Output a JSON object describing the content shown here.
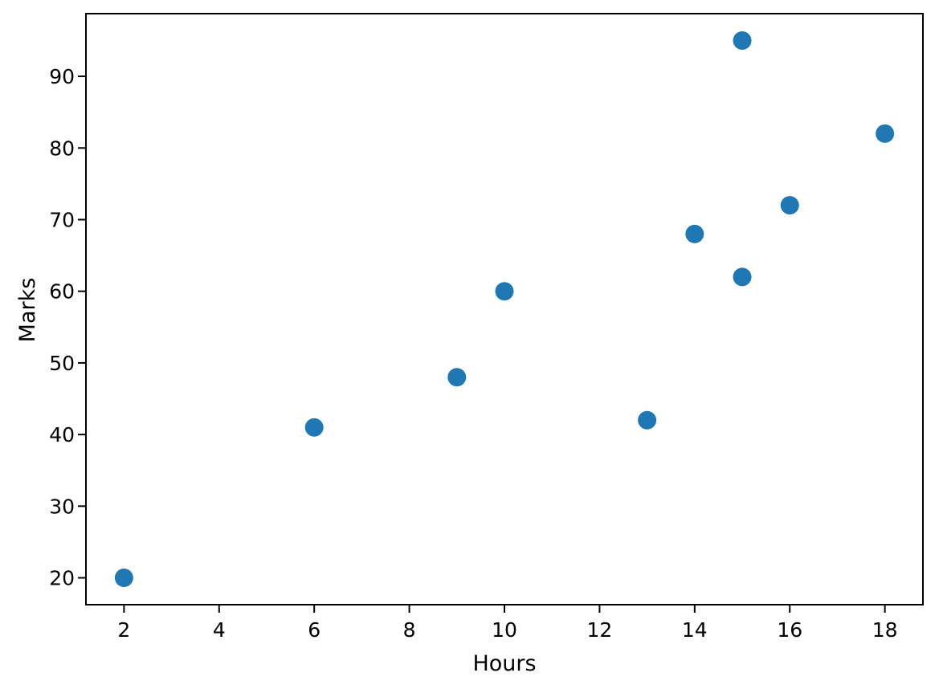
{
  "chart_data": {
    "type": "scatter",
    "xlabel": "Hours",
    "ylabel": "Marks",
    "points": [
      {
        "x": 2,
        "y": 20
      },
      {
        "x": 6,
        "y": 41
      },
      {
        "x": 9,
        "y": 48
      },
      {
        "x": 10,
        "y": 60
      },
      {
        "x": 13,
        "y": 42
      },
      {
        "x": 14,
        "y": 68
      },
      {
        "x": 15,
        "y": 95
      },
      {
        "x": 15,
        "y": 62
      },
      {
        "x": 16,
        "y": 72
      },
      {
        "x": 18,
        "y": 82
      }
    ],
    "xticks": [
      2,
      4,
      6,
      8,
      10,
      12,
      14,
      16,
      18
    ],
    "yticks": [
      20,
      30,
      40,
      50,
      60,
      70,
      80,
      90
    ],
    "xlim": [
      1.2,
      18.8
    ],
    "ylim": [
      16.25,
      98.75
    ],
    "grid": false,
    "legend": null,
    "marker_color": "#1f77b4",
    "marker_radius": 11.5,
    "spine_color": "#000000",
    "background_color": "#ffffff"
  }
}
